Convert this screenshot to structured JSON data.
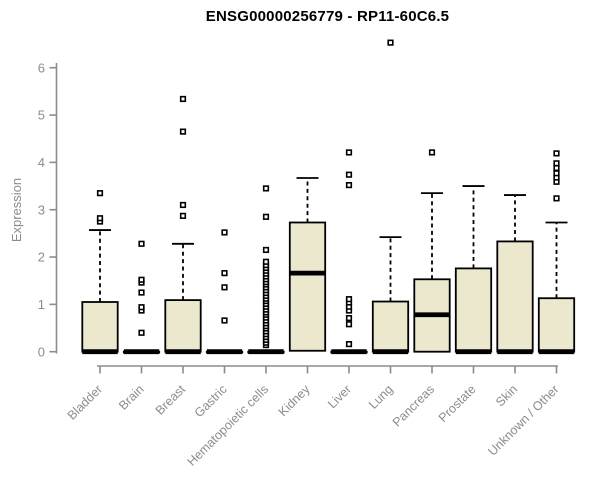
{
  "header": {
    "title": "ENSG00000256779 - RP11-60C6.5"
  },
  "colors": {
    "box_fill": "#ece8cd",
    "box_border": "#000000",
    "median": "#000000",
    "whisker": "#000000",
    "outlier_stroke": "#000000",
    "outlier_fill": "#ffffff",
    "axis": "#8c8c8c",
    "tick_label": "#8c8c8c",
    "title_color": "#000000",
    "background": "#ffffff"
  },
  "chart_data": {
    "type": "boxplot",
    "title": "ENSG00000256779 - RP11-60C6.5",
    "xlabel": "",
    "ylabel": "Expression",
    "ylim": [
      0,
      6
    ],
    "yticks": [
      0,
      1,
      2,
      3,
      4,
      5,
      6
    ],
    "grid": false,
    "legend": false,
    "categories": [
      "Bladder",
      "Brain",
      "Breast",
      "Gastric",
      "Hematopoietic cells",
      "Kidney",
      "Liver",
      "Lung",
      "Pancreas",
      "Prostate",
      "Skin",
      "Unknown / Other"
    ],
    "boxes": [
      {
        "name": "Bladder",
        "q1": 0,
        "median": 0,
        "q3": 1.05,
        "whisker_low": 0,
        "whisker_high": 2.57,
        "outliers": [
          2.75,
          2.82,
          3.35
        ]
      },
      {
        "name": "Brain",
        "q1": 0,
        "median": 0,
        "q3": 0,
        "whisker_low": 0,
        "whisker_high": 0,
        "outliers": [
          0.4,
          0.87,
          0.94,
          1.25,
          1.46,
          1.52,
          2.28
        ]
      },
      {
        "name": "Breast",
        "q1": 0,
        "median": 0,
        "q3": 1.09,
        "whisker_low": 0,
        "whisker_high": 2.28,
        "outliers": [
          2.87,
          3.1,
          4.65,
          5.34
        ]
      },
      {
        "name": "Gastric",
        "q1": 0,
        "median": 0,
        "q3": 0,
        "whisker_low": 0,
        "whisker_high": 0,
        "outliers": [
          0.66,
          1.36,
          1.66,
          2.52
        ]
      },
      {
        "name": "Hematopoietic cells",
        "q1": 0,
        "median": 0,
        "q3": 0,
        "whisker_low": 0,
        "whisker_high": 0,
        "outliers": [
          0.14,
          0.19,
          0.25,
          0.31,
          0.37,
          0.43,
          0.49,
          0.54,
          0.6,
          0.66,
          0.72,
          0.78,
          0.83,
          0.89,
          0.95,
          1.01,
          1.07,
          1.12,
          1.18,
          1.24,
          1.3,
          1.36,
          1.42,
          1.47,
          1.53,
          1.59,
          1.65,
          1.71,
          1.77,
          1.83,
          1.9,
          2.15,
          2.85,
          3.45
        ]
      },
      {
        "name": "Kidney",
        "q1": 0.02,
        "median": 1.66,
        "q3": 2.73,
        "whisker_low": 0,
        "whisker_high": 3.67,
        "outliers": []
      },
      {
        "name": "Liver",
        "q1": 0,
        "median": 0,
        "q3": 0,
        "whisker_low": 0,
        "whisker_high": 0,
        "outliers": [
          0.16,
          0.58,
          0.71,
          0.87,
          0.95,
          1.04,
          1.11,
          3.52,
          3.74,
          4.21
        ]
      },
      {
        "name": "Lung",
        "q1": 0,
        "median": 0,
        "q3": 1.06,
        "whisker_low": 0,
        "whisker_high": 2.42,
        "outliers": [
          6.53
        ]
      },
      {
        "name": "Pancreas",
        "q1": 0,
        "median": 0.78,
        "q3": 1.53,
        "whisker_low": 0,
        "whisker_high": 3.35,
        "outliers": [
          4.21
        ]
      },
      {
        "name": "Prostate",
        "q1": 0,
        "median": 0,
        "q3": 1.76,
        "whisker_low": 0,
        "whisker_high": 3.5,
        "outliers": []
      },
      {
        "name": "Skin",
        "q1": 0,
        "median": 0,
        "q3": 2.33,
        "whisker_low": 0,
        "whisker_high": 3.31,
        "outliers": []
      },
      {
        "name": "Unknown / Other",
        "q1": 0,
        "median": 0,
        "q3": 1.13,
        "whisker_low": 0,
        "whisker_high": 2.73,
        "outliers": [
          3.24,
          3.59,
          3.68,
          3.77,
          3.88,
          3.98,
          4.19
        ]
      }
    ]
  }
}
